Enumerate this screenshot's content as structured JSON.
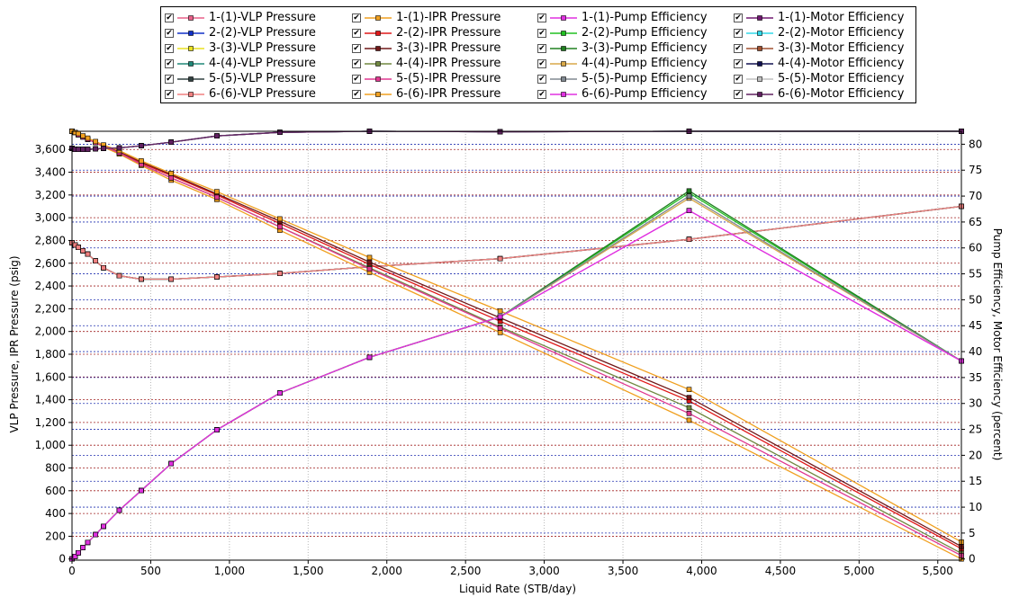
{
  "chart_data": {
    "type": "line",
    "title": "",
    "xlabel": "Liquid Rate  (STB/day)",
    "ylabel": "VLP Pressure, IPR Pressure  (psig)",
    "y2label": "Pump Efficiency, Motor Efficiency  (percent)",
    "xlim": [
      0,
      5650
    ],
    "ylim": [
      -10,
      3760
    ],
    "y2lim": [
      -0.22,
      82.5
    ],
    "xticks": [
      0,
      500,
      1000,
      1500,
      2000,
      2500,
      3000,
      3500,
      4000,
      4500,
      5000,
      5500
    ],
    "xtick_labels": [
      "0",
      "500",
      "1,000",
      "1,500",
      "2,000",
      "2,500",
      "3,000",
      "3,500",
      "4,000",
      "4,500",
      "5,000",
      "5,500"
    ],
    "yticks": [
      0,
      200,
      400,
      600,
      800,
      1000,
      1200,
      1400,
      1600,
      1800,
      2000,
      2200,
      2400,
      2600,
      2800,
      3000,
      3200,
      3400,
      3600
    ],
    "ytick_labels": [
      "0",
      "200",
      "400",
      "600",
      "800",
      "1,000",
      "1,200",
      "1,400",
      "1,600",
      "1,800",
      "2,000",
      "2,200",
      "2,400",
      "2,600",
      "2,800",
      "3,000",
      "3,200",
      "3,400",
      "3,600"
    ],
    "y2ticks": [
      0,
      5,
      10,
      15,
      20,
      25,
      30,
      35,
      40,
      45,
      50,
      55,
      60,
      65,
      70,
      75,
      80
    ],
    "y2tick_labels": [
      "0",
      "5",
      "10",
      "15",
      "20",
      "25",
      "30",
      "35",
      "40",
      "45",
      "50",
      "55",
      "60",
      "65",
      "70",
      "75",
      "80"
    ],
    "grid": true,
    "legend_position": "top",
    "series": [
      {
        "name": "1-(1)-VLP Pressure",
        "axis": "left",
        "color": "#e8608a",
        "x": [
          0,
          20,
          40,
          70,
          100,
          150,
          200,
          300,
          440,
          630,
          920,
          1320,
          1890,
          2720,
          3920,
          5650
        ],
        "y": [
          2780,
          2760,
          2740,
          2710,
          2680,
          2620,
          2560,
          2490,
          2460,
          2460,
          2480,
          2510,
          2570,
          2640,
          2810,
          3100
        ]
      },
      {
        "name": "2-(2)-VLP Pressure",
        "axis": "left",
        "color": "#1030c8",
        "x": [
          0,
          20,
          40,
          70,
          100,
          150,
          200,
          300,
          440,
          630,
          920,
          1320,
          1890,
          2720,
          3920,
          5650
        ],
        "y": [
          2780,
          2760,
          2740,
          2710,
          2680,
          2620,
          2560,
          2490,
          2460,
          2460,
          2480,
          2510,
          2570,
          2640,
          2810,
          3100
        ]
      },
      {
        "name": "3-(3)-VLP Pressure",
        "axis": "left",
        "color": "#e8e020",
        "x": [
          0,
          20,
          40,
          70,
          100,
          150,
          200,
          300,
          440,
          630,
          920,
          1320,
          1890,
          2720,
          3920,
          5650
        ],
        "y": [
          2780,
          2760,
          2740,
          2710,
          2680,
          2620,
          2560,
          2490,
          2460,
          2460,
          2480,
          2510,
          2570,
          2640,
          2810,
          3100
        ]
      },
      {
        "name": "4-(4)-VLP Pressure",
        "axis": "left",
        "color": "#208878",
        "x": [
          0,
          20,
          40,
          70,
          100,
          150,
          200,
          300,
          440,
          630,
          920,
          1320,
          1890,
          2720,
          3920,
          5650
        ],
        "y": [
          2780,
          2760,
          2740,
          2710,
          2680,
          2620,
          2560,
          2490,
          2460,
          2460,
          2480,
          2510,
          2570,
          2640,
          2810,
          3100
        ]
      },
      {
        "name": "5-(5)-VLP Pressure",
        "axis": "left",
        "color": "#304040",
        "x": [
          0,
          20,
          40,
          70,
          100,
          150,
          200,
          300,
          440,
          630,
          920,
          1320,
          1890,
          2720,
          3920,
          5650
        ],
        "y": [
          2780,
          2760,
          2740,
          2710,
          2680,
          2620,
          2560,
          2490,
          2460,
          2460,
          2480,
          2510,
          2570,
          2640,
          2810,
          3100
        ]
      },
      {
        "name": "6-(6)-VLP Pressure",
        "axis": "left",
        "color": "#f08080",
        "x": [
          0,
          20,
          40,
          70,
          100,
          150,
          200,
          300,
          440,
          630,
          920,
          1320,
          1890,
          2720,
          3920,
          5650
        ],
        "y": [
          2780,
          2760,
          2740,
          2710,
          2680,
          2620,
          2560,
          2490,
          2460,
          2460,
          2480,
          2510,
          2570,
          2640,
          2810,
          3100
        ]
      },
      {
        "name": "1-(1)-IPR Pressure",
        "axis": "left",
        "color": "#f0a020",
        "x": [
          0,
          20,
          40,
          70,
          100,
          150,
          200,
          300,
          440,
          630,
          920,
          1320,
          1890,
          2720,
          3920,
          5650
        ],
        "y": [
          3760,
          3750,
          3730,
          3710,
          3690,
          3660,
          3620,
          3560,
          3460,
          3330,
          3160,
          2890,
          2520,
          1990,
          1220,
          0
        ]
      },
      {
        "name": "2-(2)-IPR Pressure",
        "axis": "left",
        "color": "#e01818",
        "x": [
          0,
          20,
          40,
          70,
          100,
          150,
          200,
          300,
          440,
          630,
          920,
          1320,
          1890,
          2720,
          3920,
          5650
        ],
        "y": [
          3760,
          3750,
          3730,
          3710,
          3690,
          3660,
          3630,
          3570,
          3480,
          3370,
          3200,
          2950,
          2590,
          2090,
          1390,
          90
        ]
      },
      {
        "name": "3-(3)-IPR Pressure",
        "axis": "left",
        "color": "#701818",
        "x": [
          0,
          20,
          40,
          70,
          100,
          150,
          200,
          300,
          440,
          630,
          920,
          1320,
          1890,
          2720,
          3920,
          5650
        ],
        "y": [
          3760,
          3750,
          3730,
          3710,
          3690,
          3660,
          3630,
          3580,
          3490,
          3380,
          3210,
          2970,
          2610,
          2120,
          1420,
          110
        ]
      },
      {
        "name": "4-(4)-IPR Pressure",
        "axis": "left",
        "color": "#708840",
        "x": [
          0,
          20,
          40,
          70,
          100,
          150,
          200,
          300,
          440,
          630,
          920,
          1320,
          1890,
          2720,
          3920,
          5650
        ],
        "y": [
          3760,
          3750,
          3730,
          3710,
          3690,
          3660,
          3630,
          3570,
          3470,
          3350,
          3180,
          2920,
          2560,
          2040,
          1330,
          50
        ]
      },
      {
        "name": "5-(5)-IPR Pressure",
        "axis": "left",
        "color": "#e03890",
        "x": [
          0,
          20,
          40,
          70,
          100,
          150,
          200,
          300,
          440,
          630,
          920,
          1320,
          1890,
          2720,
          3920,
          5650
        ],
        "y": [
          3760,
          3750,
          3730,
          3710,
          3690,
          3660,
          3630,
          3570,
          3470,
          3350,
          3180,
          2920,
          2550,
          2030,
          1280,
          30
        ]
      },
      {
        "name": "6-(6)-IPR Pressure",
        "axis": "left",
        "color": "#f0a020",
        "x": [
          0,
          20,
          40,
          70,
          100,
          150,
          200,
          300,
          440,
          630,
          920,
          1320,
          1890,
          2720,
          3920,
          5650
        ],
        "y": [
          3760,
          3750,
          3740,
          3720,
          3700,
          3670,
          3640,
          3590,
          3500,
          3390,
          3230,
          2990,
          2650,
          2180,
          1490,
          150
        ]
      },
      {
        "name": "1-(1)-Pump Efficiency",
        "axis": "right",
        "color": "#e030e0",
        "x": [
          0,
          20,
          40,
          70,
          100,
          150,
          200,
          300,
          440,
          630,
          920,
          1320,
          1890,
          2720,
          3920,
          5650
        ],
        "y": [
          0,
          0.5,
          1.2,
          2.2,
          3.2,
          4.7,
          6.3,
          9.4,
          13.2,
          18.4,
          24.9,
          32.0,
          38.9,
          46.7,
          67.2,
          38.2
        ]
      },
      {
        "name": "2-(2)-Pump Efficiency",
        "axis": "right",
        "color": "#20c020",
        "x": [
          0,
          20,
          40,
          70,
          100,
          150,
          200,
          300,
          440,
          630,
          920,
          1320,
          1890,
          2720,
          3920,
          5650
        ],
        "y": [
          0,
          0.5,
          1.2,
          2.2,
          3.2,
          4.7,
          6.3,
          9.4,
          13.2,
          18.4,
          24.9,
          32.0,
          38.9,
          46.7,
          70.6,
          38.2
        ]
      },
      {
        "name": "3-(3)-Pump Efficiency",
        "axis": "right",
        "color": "#208020",
        "x": [
          0,
          20,
          40,
          70,
          100,
          150,
          200,
          300,
          440,
          630,
          920,
          1320,
          1890,
          2720,
          3920,
          5650
        ],
        "y": [
          0,
          0.5,
          1.2,
          2.2,
          3.2,
          4.7,
          6.3,
          9.4,
          13.2,
          18.4,
          24.9,
          32.0,
          38.9,
          46.7,
          71.0,
          38.2
        ]
      },
      {
        "name": "4-(4)-Pump Efficiency",
        "axis": "right",
        "color": "#d8a848",
        "x": [
          0,
          20,
          40,
          70,
          100,
          150,
          200,
          300,
          440,
          630,
          920,
          1320,
          1890,
          2720,
          3920,
          5650
        ],
        "y": [
          0,
          0.5,
          1.2,
          2.2,
          3.2,
          4.7,
          6.3,
          9.4,
          13.2,
          18.4,
          24.9,
          32.0,
          38.9,
          46.7,
          69.6,
          38.2
        ]
      },
      {
        "name": "5-(5)-Pump Efficiency",
        "axis": "right",
        "color": "#808890",
        "x": [
          0,
          20,
          40,
          70,
          100,
          150,
          200,
          300,
          440,
          630,
          920,
          1320,
          1890,
          2720,
          3920,
          5650
        ],
        "y": [
          0,
          0.5,
          1.2,
          2.2,
          3.2,
          4.7,
          6.3,
          9.4,
          13.2,
          18.4,
          24.9,
          32.0,
          38.9,
          46.7,
          70.0,
          38.2
        ]
      },
      {
        "name": "6-(6)-Pump Efficiency",
        "axis": "right",
        "color": "#e030e0",
        "x": [
          0,
          20,
          40,
          70,
          100,
          150,
          200,
          300,
          440,
          630,
          920,
          1320,
          1890,
          2720,
          3920,
          5650
        ],
        "y": [
          0,
          0.5,
          1.2,
          2.2,
          3.2,
          4.7,
          6.3,
          9.4,
          13.2,
          18.4,
          24.9,
          32.0,
          38.9,
          46.7,
          67.2,
          38.2
        ]
      },
      {
        "name": "1-(1)-Motor Efficiency",
        "axis": "right",
        "color": "#701870",
        "x": [
          0,
          20,
          40,
          70,
          100,
          150,
          200,
          300,
          440,
          630,
          920,
          1320,
          1890,
          2720,
          3920,
          5650
        ],
        "y": [
          79.2,
          79.0,
          79.0,
          79.0,
          79.0,
          79.1,
          79.2,
          79.3,
          79.7,
          80.4,
          81.6,
          82.3,
          82.5,
          82.4,
          82.5,
          82.5
        ]
      },
      {
        "name": "2-(2)-Motor Efficiency",
        "axis": "right",
        "color": "#30d8e8",
        "x": [
          0,
          20,
          40,
          70,
          100,
          150,
          200,
          300,
          440,
          630,
          920,
          1320,
          1890,
          2720,
          3920,
          5650
        ],
        "y": [
          79.2,
          79.0,
          79.0,
          79.0,
          79.0,
          79.1,
          79.2,
          79.3,
          79.7,
          80.4,
          81.6,
          82.3,
          82.5,
          82.4,
          82.5,
          82.5
        ]
      },
      {
        "name": "3-(3)-Motor Efficiency",
        "axis": "right",
        "color": "#a05030",
        "x": [
          0,
          20,
          40,
          70,
          100,
          150,
          200,
          300,
          440,
          630,
          920,
          1320,
          1890,
          2720,
          3920,
          5650
        ],
        "y": [
          79.2,
          79.0,
          79.0,
          79.0,
          79.0,
          79.1,
          79.2,
          79.3,
          79.7,
          80.4,
          81.6,
          82.3,
          82.5,
          82.4,
          82.5,
          82.5
        ]
      },
      {
        "name": "4-(4)-Motor Efficiency",
        "axis": "right",
        "color": "#101050",
        "x": [
          0,
          20,
          40,
          70,
          100,
          150,
          200,
          300,
          440,
          630,
          920,
          1320,
          1890,
          2720,
          3920,
          5650
        ],
        "y": [
          79.2,
          79.0,
          79.0,
          79.0,
          79.0,
          79.1,
          79.2,
          79.3,
          79.7,
          80.4,
          81.6,
          82.3,
          82.5,
          82.4,
          82.5,
          82.5
        ]
      },
      {
        "name": "5-(5)-Motor Efficiency",
        "axis": "right",
        "color": "#c0c0c0",
        "x": [
          0,
          20,
          40,
          70,
          100,
          150,
          200,
          300,
          440,
          630,
          920,
          1320,
          1890,
          2720,
          3920,
          5650
        ],
        "y": [
          79.2,
          79.0,
          79.0,
          79.0,
          79.0,
          79.1,
          79.2,
          79.3,
          79.7,
          80.4,
          81.6,
          82.3,
          82.5,
          82.4,
          82.5,
          82.5
        ]
      },
      {
        "name": "6-(6)-Motor Efficiency",
        "axis": "right",
        "color": "#602060",
        "x": [
          0,
          20,
          40,
          70,
          100,
          150,
          200,
          300,
          440,
          630,
          920,
          1320,
          1890,
          2720,
          3920,
          5650
        ],
        "y": [
          79.2,
          79.0,
          79.0,
          79.0,
          79.0,
          79.1,
          79.2,
          79.3,
          79.7,
          80.4,
          81.6,
          82.3,
          82.5,
          82.4,
          82.5,
          82.5
        ]
      }
    ]
  },
  "legend": {
    "checkbox_glyph": "✔"
  }
}
